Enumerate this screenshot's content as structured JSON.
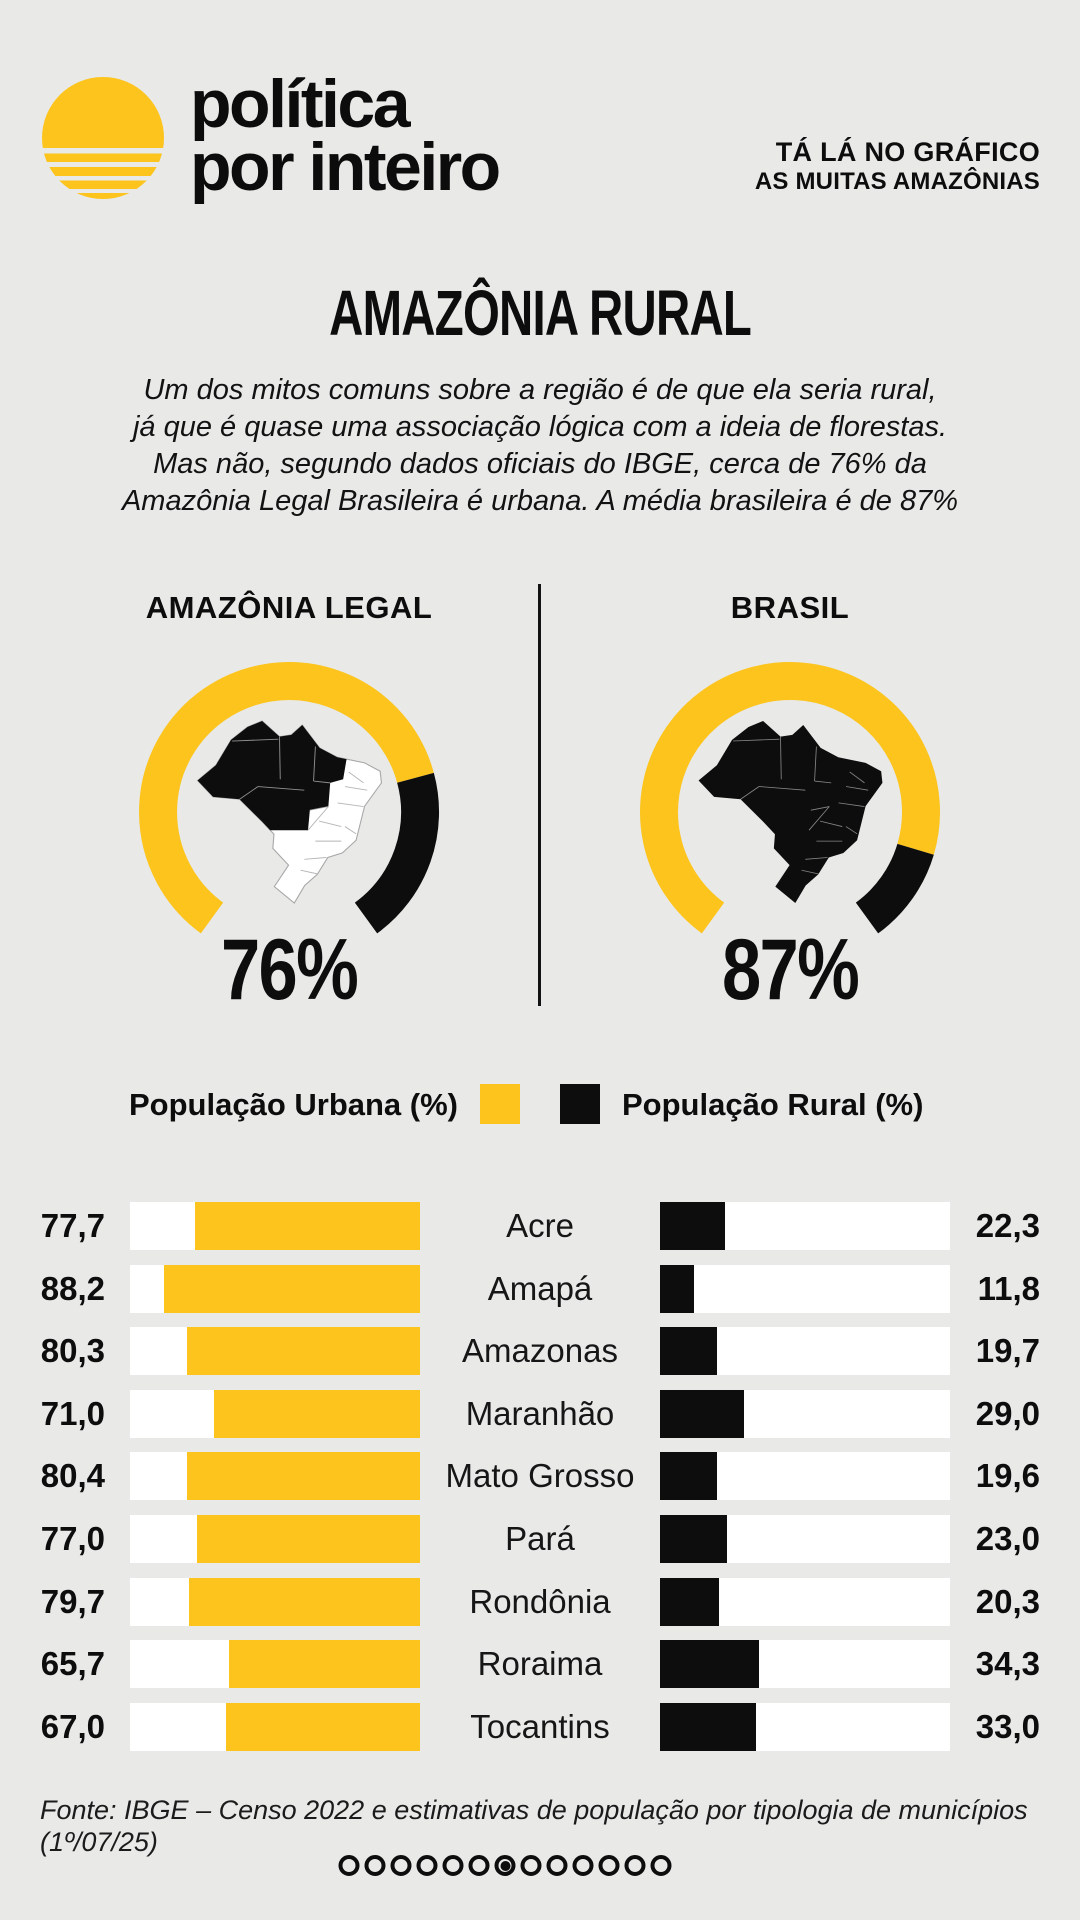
{
  "colors": {
    "background": "#e9e9e8",
    "accent_yellow": "#fcc41c",
    "ink_black": "#0d0d0d",
    "track_white": "#ffffff",
    "map_border_gray": "#a8a8a8"
  },
  "header": {
    "brand_line1": "política",
    "brand_line2": "por inteiro",
    "tagline_line1": "TÁ LÁ NO GRÁFICO",
    "tagline_line2": "AS MUITAS AMAZÔNIAS"
  },
  "title": "AMAZÔNIA RURAL",
  "intro_paragraph": "Um dos mitos comuns sobre a região é de que ela seria rural,\njá que é quase uma associação lógica com a ideia de florestas.\nMas não, segundo dados oficiais do IBGE, cerca de 76% da\nAmazônia Legal Brasileira é urbana. A média brasileira é de 87%",
  "legend": {
    "urban_label": "População Urbana (%)",
    "rural_label": "População Rural (%)"
  },
  "chart_data": {
    "gauges": {
      "type": "gauge",
      "unit": "% de população urbana",
      "series": [
        {
          "label": "AMAZÔNIA LEGAL",
          "value": 76,
          "display": "76%",
          "map_variant": "amazonia-legal-highlighted"
        },
        {
          "label": "BRASIL",
          "value": 87,
          "display": "87%",
          "map_variant": "full-country-highlighted"
        }
      ]
    },
    "bars": {
      "type": "bar",
      "layout": "paired-horizontal",
      "categories": [
        "Acre",
        "Amapá",
        "Amazonas",
        "Maranhão",
        "Mato Grosso",
        "Pará",
        "Rondônia",
        "Roraima",
        "Tocantins"
      ],
      "series": [
        {
          "name": "População Urbana (%)",
          "color": "#fcc41c",
          "values": [
            77.7,
            88.2,
            80.3,
            71.0,
            80.4,
            77.0,
            79.7,
            65.7,
            67.0
          ]
        },
        {
          "name": "População Rural (%)",
          "color": "#0d0d0d",
          "values": [
            22.3,
            11.8,
            19.7,
            29.0,
            19.6,
            23.0,
            20.3,
            34.3,
            33.0
          ]
        }
      ],
      "xlim": [
        0,
        100
      ],
      "value_format": "decimal-comma-1"
    }
  },
  "footer": {
    "source": "Fonte: IBGE – Censo 2022 e estimativas de população por tipologia de municípios (1º/07/25)"
  },
  "pagination": {
    "total_dots": 13,
    "active_index": 6
  }
}
